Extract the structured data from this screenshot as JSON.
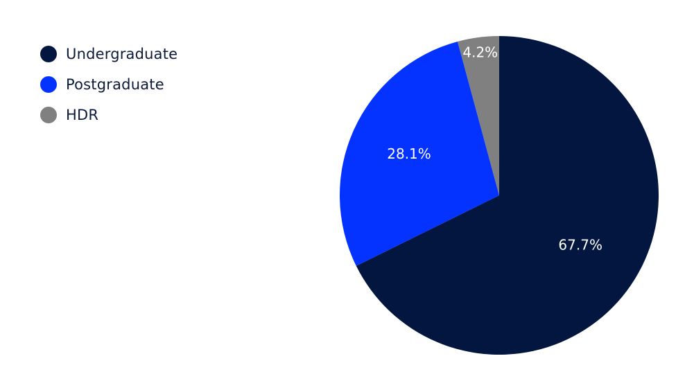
{
  "chart_data": {
    "type": "pie",
    "categories": [
      "Undergraduate",
      "Postgraduate",
      "HDR"
    ],
    "values": [
      67.7,
      28.1,
      4.2
    ],
    "value_labels": [
      "67.7%",
      "28.1%",
      "4.2%"
    ],
    "colors": [
      "#03163f",
      "#0433ff",
      "#808080"
    ],
    "title": "",
    "legend_position": "top-left",
    "start_angle": "12 o'clock",
    "direction": "clockwise"
  }
}
